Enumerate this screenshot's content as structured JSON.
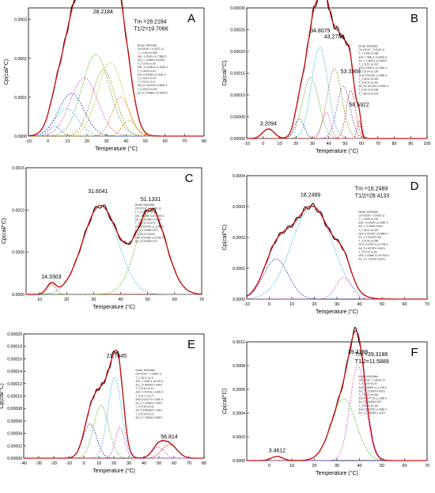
{
  "figure": {
    "background": "#ffffff",
    "axis_color": "#000000"
  },
  "chart_data": [
    {
      "panel_letter": "A",
      "type": "line",
      "xlabel": "Temperature (°C)",
      "ylabel": "Cp(cal/°C)",
      "xlim": [
        -10,
        80
      ],
      "ylim": [
        0,
        0.00033
      ],
      "xticks": [
        -10,
        0,
        10,
        20,
        30,
        40,
        50,
        60,
        70,
        80
      ],
      "yticks": [
        0.0,
        0.0001,
        0.0002,
        0.0003
      ],
      "ytick_labels": [
        "0.0000",
        "0.0001",
        "0.0002",
        "0.0003"
      ],
      "peak_labels": [
        {
          "x": 28.2184,
          "y": 0.00031,
          "text": "28.2184"
        }
      ],
      "annotations": [
        "Tm =28.2184",
        "T1/2=19.7066"
      ],
      "components": [
        {
          "tm": 3.5,
          "height": 2.5e-05,
          "width": 3,
          "color": "#3b7be0"
        },
        {
          "tm": 9.5,
          "height": 7e-05,
          "width": 6,
          "color": "#3fb8e0"
        },
        {
          "tm": 12.0,
          "height": 0.00011,
          "width": 6.5,
          "color": "#2a44c8"
        },
        {
          "tm": 18.5,
          "height": 0.00015,
          "width": 7,
          "color": "#e04cd8"
        },
        {
          "tm": 24.5,
          "height": 0.00021,
          "width": 7,
          "color": "#5ab82e"
        },
        {
          "tm": 28.5,
          "height": 0.00017,
          "width": 6,
          "color": "#a08a1a"
        },
        {
          "tm": 32.0,
          "height": 0.00019,
          "width": 6.5,
          "color": "#c8c020"
        },
        {
          "tm": 37.5,
          "height": 0.0001,
          "width": 4.5,
          "color": "#f07a1a"
        },
        {
          "tm": 41.5,
          "height": 4e-05,
          "width": 3.5,
          "color": "#c8a020"
        }
      ],
      "box_lines": [
        "Model: MN2State",
        "Chi^2/DoF = 6.347E-12",
        "T_1   2.576   ±0.389",
        "ΔH1   -1.424E-4  ±1.786E-5",
        "ΔH_1   1.1186E3   6.815E3",
        "T_2   10.08   ±0.26",
        "ΔH2   -0.1234E-6  ±1.425E-4",
        "T_3   18.55   ±0.54",
        "ΔH3   0.000060  ±4.115E-4",
        "T_4   24.81   ±0.33",
        "T_5   32.33   ±0.17",
        "ΔH_6   0.001025  ±4.580E-4",
        "T_6   39.04   ±0.039",
        "ΔH_6   1.5258E4   ±6.785E-5"
      ]
    },
    {
      "panel_letter": "B",
      "type": "line",
      "xlabel": "Temperature (°C)",
      "ylabel": "Cp(cal/°C)",
      "xlim": [
        -10,
        100
      ],
      "ylim": [
        0,
        0.0003
      ],
      "xticks": [
        -10,
        0,
        10,
        20,
        30,
        40,
        50,
        60,
        70,
        80,
        90,
        100
      ],
      "yticks": [
        0.0,
        5e-05,
        0.0001,
        0.00015,
        0.0002,
        0.00025,
        0.0003
      ],
      "ytick_labels": [
        "0.00000",
        "0.00005",
        "0.00010",
        "0.00015",
        "0.00020",
        "0.00025",
        "0.00030"
      ],
      "peak_labels": [
        {
          "x": 3.2094,
          "y": 2.5e-05,
          "text": "3.2094"
        },
        {
          "x": 34.8079,
          "y": 0.000238,
          "text": "34.8079"
        },
        {
          "x": 43.2759,
          "y": 0.000225,
          "text": "43.2759"
        },
        {
          "x": 53.3369,
          "y": 0.000145,
          "text": "53.3369"
        },
        {
          "x": 58.5922,
          "y": 6.8e-05,
          "text": "58.5922"
        }
      ],
      "annotations": [],
      "components": [
        {
          "tm": 3.2,
          "height": 2.2e-05,
          "width": 3.5,
          "color": "#5ab82e"
        },
        {
          "tm": 22.0,
          "height": 4.5e-05,
          "width": 3,
          "color": "#2a44c8"
        },
        {
          "tm": 29.0,
          "height": 0.00014,
          "width": 5,
          "color": "#5ab82e"
        },
        {
          "tm": 34.5,
          "height": 0.00021,
          "width": 5,
          "color": "#3fb8e0"
        },
        {
          "tm": 38.5,
          "height": 6e-05,
          "width": 2.5,
          "color": "#e04cd8"
        },
        {
          "tm": 43.5,
          "height": 0.00016,
          "width": 4.5,
          "color": "#a08a1a"
        },
        {
          "tm": 49.0,
          "height": 0.00012,
          "width": 4,
          "color": "#7a5ab8"
        },
        {
          "tm": 53.5,
          "height": 0.00011,
          "width": 2.8,
          "color": "#e04020"
        },
        {
          "tm": 58.5,
          "height": 4e-05,
          "width": 1.2,
          "color": "#c82020"
        }
      ],
      "box_lines": [
        "Model: MN2State",
        "Chi^2/DoF = 3.314E-11",
        "T_1   3.446   ±0.368",
        "ΔH1   7.765E-4  ±4.940E-4",
        "ΔH_1   1.040E3   ±1.590E3",
        "T_2   21.67   ±0.242",
        "ΔH2   4.205E-4  ±2.246E-4",
        "T_3   29.04   ±0.150",
        "ΔH3   0.000750  ±1.995E-4",
        "T_4   35.92   ±0.049",
        "T_5   44.30   ±0.091",
        "ΔH_6   0.001280  ±1.590E-3",
        "T_6   53.19   ±0.038",
        "T_7   58.44   ±0.024"
      ]
    },
    {
      "panel_letter": "C",
      "type": "line",
      "xlabel": "Temperature (°C)",
      "ylabel": "Cp(cal/°C)",
      "xlim": [
        5,
        70
      ],
      "ylim": [
        0,
        0.0015
      ],
      "xticks": [
        10,
        20,
        30,
        40,
        50,
        60,
        70
      ],
      "yticks": [
        0.0,
        0.0005,
        0.001,
        0.0015
      ],
      "ytick_labels": [
        "0.0000",
        "0.0005",
        "0.0010",
        "0.0015"
      ],
      "peak_labels": [
        {
          "x": 14.3303,
          "y": 0.00016,
          "text": "14.3303"
        },
        {
          "x": 31.6041,
          "y": 0.00117,
          "text": "31.6041"
        },
        {
          "x": 51.1331,
          "y": 0.00108,
          "text": "51.1331"
        }
      ],
      "annotations": [],
      "components": [
        {
          "tm": 14.3,
          "height": 0.00012,
          "width": 1.6,
          "color": "#e04020"
        },
        {
          "tm": 32.5,
          "height": 0.00105,
          "width": 6.5,
          "color": "#3fb8e0"
        },
        {
          "tm": 51.3,
          "height": 0.001,
          "width": 5.5,
          "color": "#5ab82e"
        }
      ],
      "box_lines": [
        "Model: MN2State",
        "Chi^2/DoF = 1.370E-10",
        "T_1   13.75   ±0.20",
        "ΔH1   -8.678E-5  ±5.560E-6",
        "ΔH_1   2.5148E5   3.48E4",
        "T_2   32.74   ±0.079",
        "ΔH2   0.002762  ±3.175E-5",
        "ΔH_2   4.4336E4   579",
        "T_3   50.24   ±0.062",
        "ΔH3   0.002506  ±2.875E-5",
        "ΔH_3   6.6025E4   971"
      ]
    },
    {
      "panel_letter": "D",
      "type": "line",
      "xlabel": "Temperature (°C)",
      "ylabel": "Cp(cal/°C)",
      "xlim": [
        -10,
        70
      ],
      "ylim": [
        0,
        0.0004
      ],
      "xticks": [
        -10,
        0,
        10,
        20,
        30,
        40,
        50,
        60,
        70
      ],
      "yticks": [
        0.0,
        0.0001,
        0.0002,
        0.0003,
        0.0004
      ],
      "ytick_labels": [
        "0.0000",
        "0.0001",
        "0.0002",
        "0.0003",
        "0.0004"
      ],
      "peak_labels": [
        {
          "x": 18.2489,
          "y": 0.000325,
          "text": "18.2489"
        }
      ],
      "annotations": [
        "Tm =18.2489",
        "T1/2=28.4133"
      ],
      "components": [
        {
          "tm": 3.0,
          "height": 0.00013,
          "width": 5.5,
          "color": "#2a44c8"
        },
        {
          "tm": 19.0,
          "height": 0.0003,
          "width": 9,
          "color": "#3fb8e0"
        },
        {
          "tm": 33.0,
          "height": 7e-05,
          "width": 3.5,
          "color": "#e04cd8"
        }
      ],
      "box_lines": [
        "Model: MN2State",
        "Chi^2/DoF = 5.970E-11",
        "T_1   2.966   ±0.033",
        "ΔH1   -0.001560  ±2.306E-5",
        "ΔH_1   -0.00062.8   663",
        "T_2   18.57   ±0.029",
        "ΔH2   -0.000337  ±2.586E-5",
        "ΔH_2   3.2222E4   208",
        "T_3   32.56   ±0.085",
        "ΔH3   4.0792E-4  ±2.075E-5",
        "ΔH_3   6.4578E4   4.56E3",
        "T_4   57.00   ±0.88",
        "ΔH4   -0.2066E-5  ±9.675E-6",
        "ΔH_4   2.7192E5   3.81E4"
      ]
    },
    {
      "panel_letter": "E",
      "type": "line",
      "xlabel": "Temperature (°C)",
      "ylabel": "Cp(cal/°C)",
      "xlim": [
        -40,
        80
      ],
      "ylim": [
        0,
        0.0002
      ],
      "xticks": [
        -40,
        -30,
        -20,
        -10,
        0,
        10,
        20,
        30,
        40,
        50,
        60,
        70,
        80
      ],
      "yticks": [
        0.0,
        2e-05,
        4e-05,
        6e-05,
        8e-05,
        0.0001,
        0.00012,
        0.00014,
        0.00016,
        0.00018,
        0.0002
      ],
      "ytick_labels": [
        "0.00000",
        "0.00002",
        "0.00004",
        "0.00006",
        "0.00008",
        "0.00010",
        "0.00012",
        "0.00014",
        "0.00016",
        "0.00018",
        "0.00020"
      ],
      "peak_labels": [
        {
          "x": 21.7645,
          "y": 0.000158,
          "text": "21.7645"
        },
        {
          "x": 56.814,
          "y": 2.8e-05,
          "text": "56.814"
        }
      ],
      "annotations": [],
      "components": [
        {
          "tm": 4.0,
          "height": 5.5e-05,
          "width": 4.5,
          "color": "#2a44c8"
        },
        {
          "tm": 11.5,
          "height": 8.5e-05,
          "width": 5,
          "color": "#5ab82e"
        },
        {
          "tm": 20.5,
          "height": 0.00013,
          "width": 4.5,
          "color": "#3fb8e0"
        },
        {
          "tm": 24.0,
          "height": 5e-05,
          "width": 3,
          "color": "#e04cd8"
        },
        {
          "tm": 49.5,
          "height": 1.8e-05,
          "width": 4,
          "color": "#e04cd8"
        },
        {
          "tm": 57.0,
          "height": 2.2e-05,
          "width": 5,
          "color": "#c82020"
        }
      ],
      "box_lines": [
        "Model: MN2State",
        "Chi^2/DoF = 2.669E-11",
        "T_1   3.617   ±0.22",
        "ΔH1   -7.333E-4  ±6.07E-5",
        "ΔH_1   5.9505E4   1.84E3",
        "T_2   11.66   ±0.14",
        "ΔH2   -0.001162  ±1.92E-4",
        "T_3   22.17   ±0.07",
        "ΔH3   0.001475  ±7.56E-5",
        "ΔH_3   7.1028E4   1.09E3",
        "T_4   47.65   ±0.31",
        "ΔH_4   5.8006E4   2.78E3",
        "T_5   57.05   ±0.15",
        "ΔH_5   7.7926E4   2.58E3"
      ]
    },
    {
      "panel_letter": "F",
      "type": "line",
      "xlabel": "Temperature (°C)",
      "ylabel": "Cp(cal/°C)",
      "xlim": [
        -10,
        70
      ],
      "ylim": [
        0,
        0.001
      ],
      "xticks": [
        0,
        10,
        20,
        30,
        40,
        50,
        60,
        70
      ],
      "yticks": [
        0.0,
        0.0002,
        0.0004,
        0.0006,
        0.0008,
        0.001
      ],
      "ytick_labels": [
        "0.0000",
        "0.0002",
        "0.0004",
        "0.0006",
        "0.0008",
        "0.0010"
      ],
      "peak_labels": [
        {
          "x": 3.4612,
          "y": 5e-05,
          "text": "3.4612"
        },
        {
          "x": 39.3188,
          "y": 0.00088,
          "text": "39.3188"
        }
      ],
      "annotations": [
        "Tm =39.3188",
        "T1/2=11.5889"
      ],
      "components": [
        {
          "tm": 3.4,
          "height": 3.5e-05,
          "width": 2.5,
          "color": "#2a44c8"
        },
        {
          "tm": 33.0,
          "height": 0.00052,
          "width": 5.5,
          "color": "#5ab82e"
        },
        {
          "tm": 39.3,
          "height": 0.0008,
          "width": 3.5,
          "color": "#e04cd8"
        }
      ],
      "box_lines": [
        "Model: MN2State",
        "Chi^2/DoF = 2.202E-10",
        "T_1   3.209   ±0.30",
        "ΔH1   2.2809E-4  ±1.30E-5",
        "ΔH_1   7.1190E4   4.82E3",
        "T_2   35.43   ±0.063",
        "ΔH2   0.007716  ±1.195E-4",
        "ΔH_2   4.4438E4   347",
        "T_3   40.33   ±0.018",
        "ΔH3   0.003755  ±1.085E-4",
        "ΔH_3   1.0563E5   1.41E3"
      ]
    }
  ]
}
